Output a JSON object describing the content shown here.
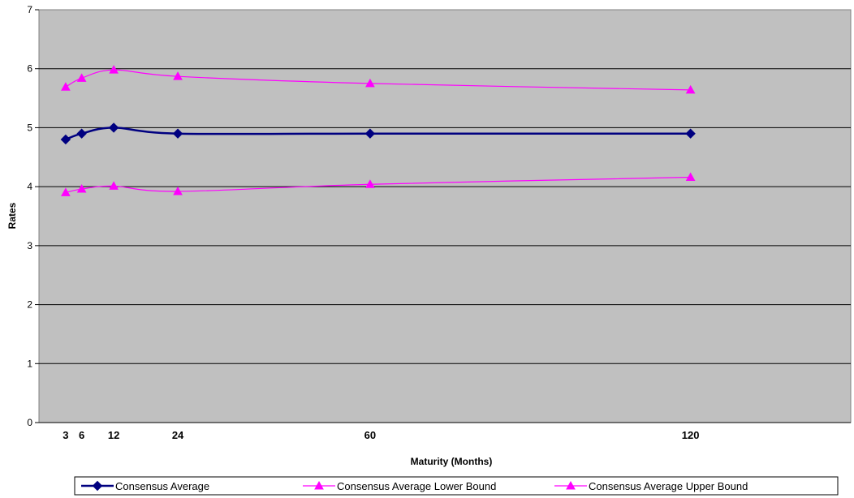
{
  "chart_data": {
    "type": "line",
    "title": "",
    "xlabel": "Maturity (Months)",
    "ylabel": "Rates",
    "ylim": [
      0,
      7
    ],
    "xlim": [
      -2,
      150
    ],
    "x_ticks": [
      3,
      6,
      12,
      24,
      60,
      120
    ],
    "y_ticks": [
      0,
      1,
      2,
      3,
      4,
      5,
      6,
      7
    ],
    "grid": true,
    "plot_background": "#c0c0c0",
    "legend_position": "bottom",
    "series": [
      {
        "name": "Consensus Average",
        "color": "#000080",
        "marker": "diamond",
        "x": [
          3,
          6,
          12,
          24,
          60,
          120
        ],
        "y": [
          4.8,
          4.9,
          5.0,
          4.9,
          4.9,
          4.9
        ]
      },
      {
        "name": "Consensus Average Lower Bound",
        "color": "#ff00ff",
        "marker": "triangle",
        "x": [
          3,
          6,
          12,
          24,
          60,
          120
        ],
        "y": [
          3.9,
          3.96,
          4.01,
          3.92,
          4.04,
          4.16
        ]
      },
      {
        "name": "Consensus Average Upper Bound",
        "color": "#ff00ff",
        "marker": "triangle",
        "x": [
          3,
          6,
          12,
          24,
          60,
          120
        ],
        "y": [
          5.69,
          5.84,
          5.98,
          5.87,
          5.75,
          5.64
        ]
      }
    ]
  }
}
